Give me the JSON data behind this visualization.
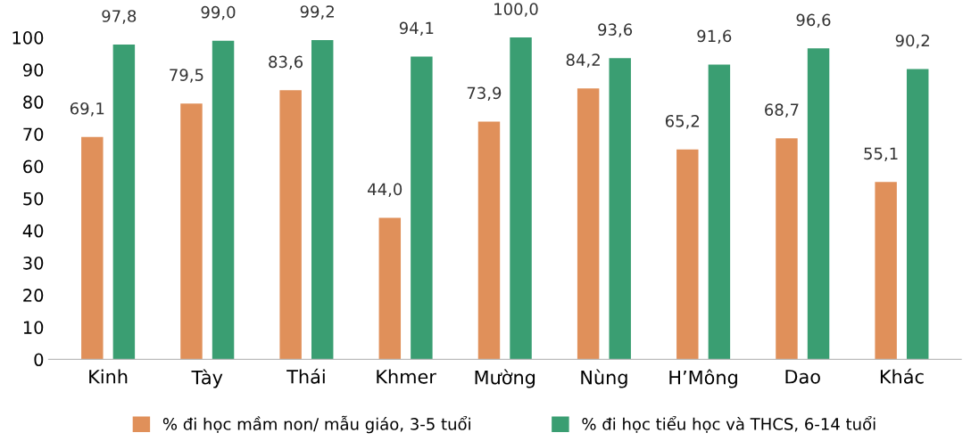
{
  "chart_data": {
    "type": "bar",
    "categories": [
      "Kinh",
      "Tày",
      "Thái",
      "Khmer",
      "Mường",
      "Nùng",
      "H’Mông",
      "Dao",
      "Khác"
    ],
    "series": [
      {
        "name": "% đi học mầm non/ mẫu giáo, 3-5 tuổi",
        "color": "#e0905a",
        "values": [
          69.1,
          79.5,
          83.6,
          44.0,
          73.9,
          84.2,
          65.2,
          68.7,
          55.1
        ],
        "value_labels": [
          "69,1",
          "79,5",
          "83,6",
          "44,0",
          "73,9",
          "84,2",
          "65,2",
          "68,7",
          "55,1"
        ]
      },
      {
        "name": "% đi học tiểu học và THCS, 6-14 tuổi",
        "color": "#3a9e72",
        "values": [
          97.8,
          99.0,
          99.2,
          94.1,
          100.0,
          93.6,
          91.6,
          96.6,
          90.2
        ],
        "value_labels": [
          "97,8",
          "99,0",
          "99,2",
          "94,1",
          "100,0",
          "93,6",
          "91,6",
          "96,6",
          "90,2"
        ]
      }
    ],
    "ylim": [
      0,
      100
    ],
    "yticks": [
      0,
      10,
      20,
      30,
      40,
      50,
      60,
      70,
      80,
      90,
      100
    ],
    "grid": false,
    "legend": "bottom"
  }
}
